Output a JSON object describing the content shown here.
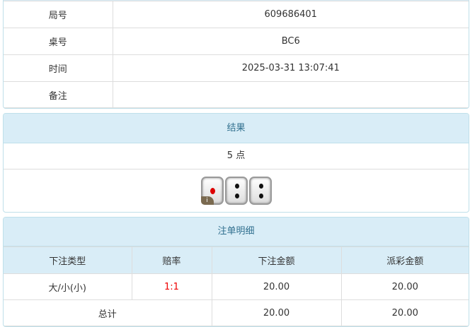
{
  "info": {
    "rows": [
      {
        "label": "局号",
        "value": "609686401"
      },
      {
        "label": "桌号",
        "value": "BC6"
      },
      {
        "label": "时间",
        "value": "2025-03-31 13:07:41"
      },
      {
        "label": "备注",
        "value": ""
      }
    ]
  },
  "result": {
    "title": "结果",
    "points": "5 点",
    "dice": [
      1,
      2,
      2
    ],
    "info_badge": "i"
  },
  "bets": {
    "title": "注单明细",
    "headers": [
      "下注类型",
      "赔率",
      "下注金额",
      "派彩金额"
    ],
    "rows": [
      {
        "type": "大/小(小)",
        "odds": "1:1",
        "amount": "20.00",
        "payout": "20.00"
      }
    ],
    "total": {
      "label": "总计",
      "amount": "20.00",
      "payout": "20.00"
    }
  },
  "colors": {
    "header_bg": "#d9edf7",
    "odds": "#ee0000"
  }
}
